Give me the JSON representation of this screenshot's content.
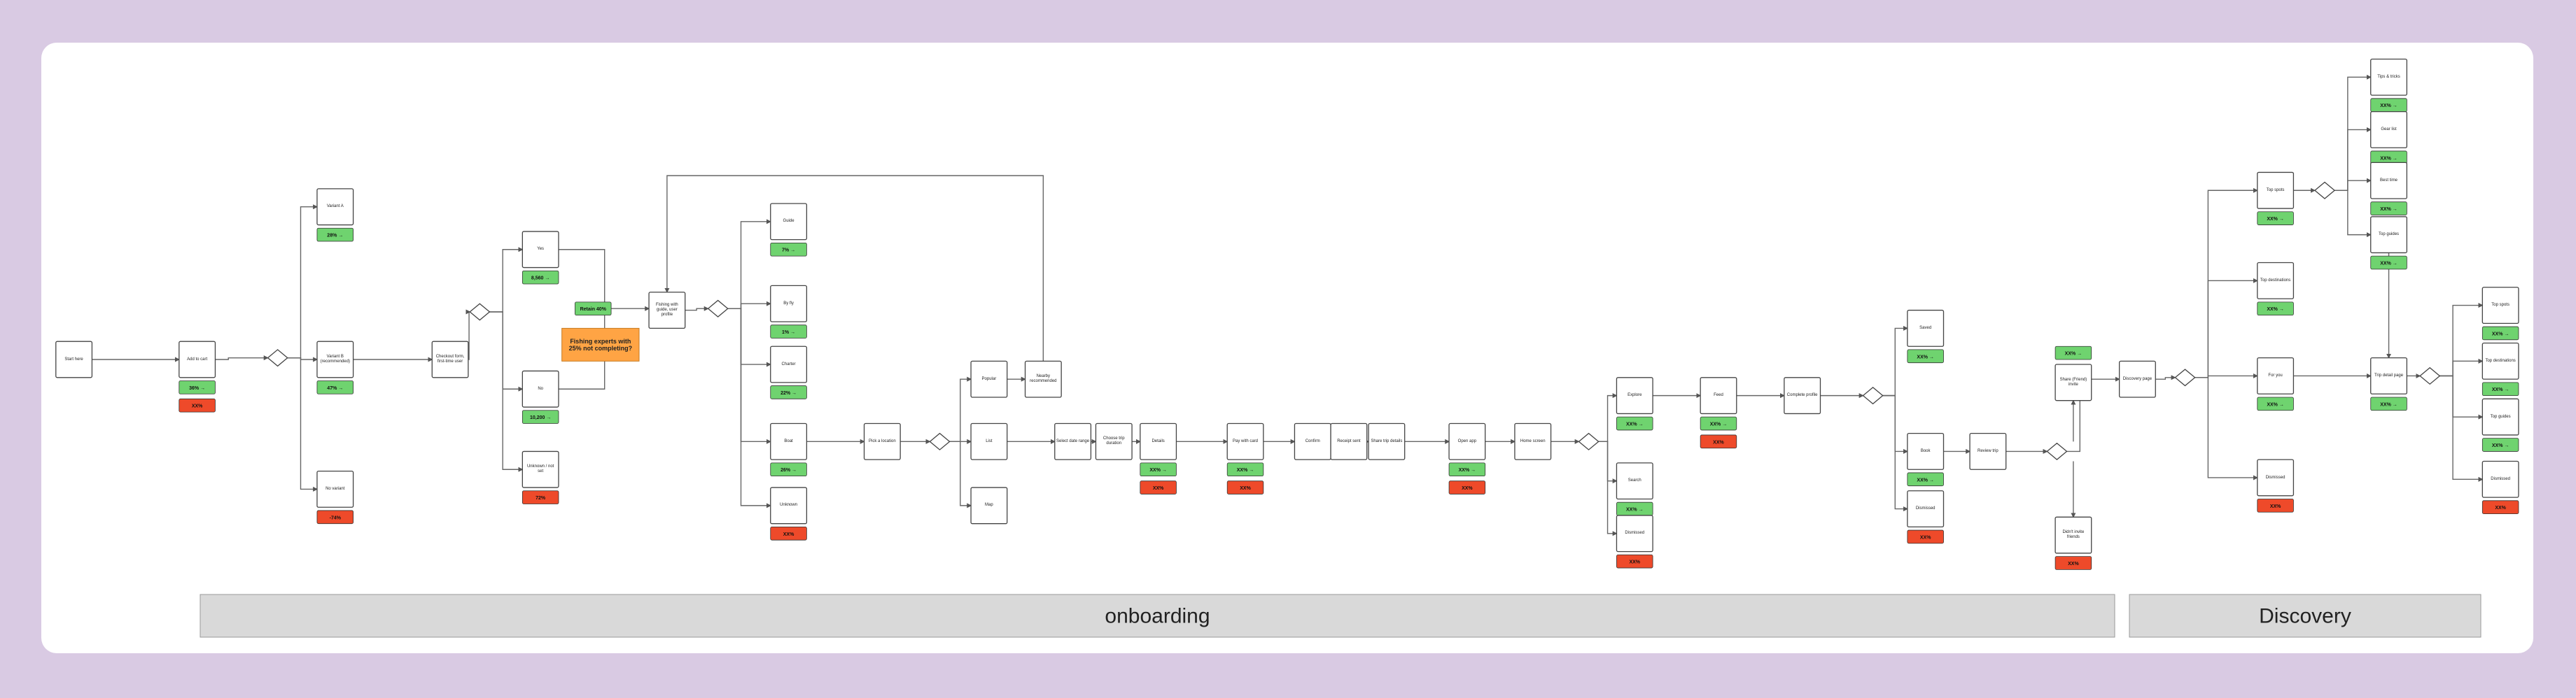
{
  "nodes": [
    {
      "label": "Start here",
      "badges": []
    },
    {
      "label": "Add to cart",
      "badges": [
        {
          "text": "36% →",
          "kind": "green"
        },
        {
          "text": "XX%",
          "kind": "red"
        }
      ]
    },
    {
      "label": "Variant A",
      "badges": [
        {
          "text": "28% →",
          "kind": "green"
        }
      ]
    },
    {
      "label": "Variant B (recommended)",
      "badges": [
        {
          "text": "47% →",
          "kind": "green"
        }
      ]
    },
    {
      "label": "No variant",
      "badges": [
        {
          "text": "-74%",
          "kind": "red"
        }
      ]
    },
    {
      "label": "Checkout form, first-time user",
      "badges": []
    },
    {
      "label": "Yes",
      "badges": [
        {
          "text": "8,560 →",
          "kind": "green"
        }
      ]
    },
    {
      "label": "No",
      "badges": [
        {
          "text": "10,200 →",
          "kind": "green"
        }
      ]
    },
    {
      "label": "Unknown / not set",
      "badges": [
        {
          "text": "72%",
          "kind": "red"
        }
      ]
    },
    {
      "label": "Fishing with guide, user profile",
      "badges": []
    },
    {
      "label": "Guide",
      "badges": [
        {
          "text": "7% →",
          "kind": "green"
        }
      ]
    },
    {
      "label": "By fly",
      "badges": [
        {
          "text": "1% →",
          "kind": "green"
        }
      ]
    },
    {
      "label": "Charter",
      "badges": [
        {
          "text": "22% →",
          "kind": "green"
        }
      ]
    },
    {
      "label": "Boat",
      "badges": [
        {
          "text": "26% →",
          "kind": "green"
        }
      ]
    },
    {
      "label": "Unknown",
      "badges": [
        {
          "text": "XX%",
          "kind": "red"
        }
      ]
    },
    {
      "label": "Pick a location",
      "badges": []
    },
    {
      "label": "Popular",
      "badges": []
    },
    {
      "label": "Nearby recommended",
      "badges": []
    },
    {
      "label": "List",
      "badges": []
    },
    {
      "label": "Map",
      "badges": []
    },
    {
      "label": "Select date range",
      "badges": []
    },
    {
      "label": "Choose trip duration",
      "badges": []
    },
    {
      "label": "Details",
      "badges": [
        {
          "text": "XX% →",
          "kind": "green"
        },
        {
          "text": "XX%",
          "kind": "red"
        }
      ]
    },
    {
      "label": "Pay with card",
      "badges": [
        {
          "text": "XX% →",
          "kind": "green"
        },
        {
          "text": "XX%",
          "kind": "red"
        }
      ]
    },
    {
      "label": "Confirm",
      "badges": []
    },
    {
      "label": "Receipt sent",
      "badges": []
    },
    {
      "label": "Share trip details",
      "badges": []
    },
    {
      "label": "Open app",
      "badges": [
        {
          "text": "XX% →",
          "kind": "green"
        },
        {
          "text": "XX%",
          "kind": "red"
        }
      ]
    },
    {
      "label": "Home screen",
      "badges": []
    },
    {
      "label": "Explore",
      "badges": [
        {
          "text": "XX% →",
          "kind": "green"
        }
      ]
    },
    {
      "label": "Search",
      "badges": [
        {
          "text": "XX% →",
          "kind": "green"
        }
      ]
    },
    {
      "label": "Dismissed",
      "badges": [
        {
          "text": "XX%",
          "kind": "red"
        }
      ]
    },
    {
      "label": "Feed",
      "badges": [
        {
          "text": "XX% →",
          "kind": "green"
        },
        {
          "text": "XX%",
          "kind": "red"
        }
      ]
    },
    {
      "label": "Complete profile",
      "badges": []
    },
    {
      "label": "Saved",
      "badges": [
        {
          "text": "XX% →",
          "kind": "green"
        }
      ]
    },
    {
      "label": "Book",
      "badges": [
        {
          "text": "XX% →",
          "kind": "green"
        }
      ]
    },
    {
      "label": "Dismissed",
      "badges": [
        {
          "text": "XX%",
          "kind": "red"
        }
      ]
    },
    {
      "label": "Review trip",
      "badges": []
    },
    {
      "label": "Share (Friend) invite",
      "badges": [
        {
          "text": "XX% →",
          "kind": "green"
        }
      ]
    },
    {
      "label": "Didn't invite friends",
      "badges": [
        {
          "text": "XX%",
          "kind": "red"
        }
      ]
    },
    {
      "label": "Discovery page",
      "badges": []
    },
    {
      "label": "Top spots",
      "badges": [
        {
          "text": "XX% →",
          "kind": "green"
        }
      ]
    },
    {
      "label": "Tips & tricks",
      "badges": [
        {
          "text": "XX% →",
          "kind": "green"
        }
      ]
    },
    {
      "label": "Gear list",
      "badges": [
        {
          "text": "XX% →",
          "kind": "green"
        }
      ]
    },
    {
      "label": "Best time",
      "badges": [
        {
          "text": "XX% →",
          "kind": "green"
        }
      ]
    },
    {
      "label": "Top guides",
      "badges": [
        {
          "text": "XX% →",
          "kind": "green"
        }
      ]
    },
    {
      "label": "Top destinations",
      "badges": [
        {
          "text": "XX% →",
          "kind": "green"
        }
      ]
    },
    {
      "label": "For you",
      "badges": [
        {
          "text": "XX% →",
          "kind": "green"
        }
      ]
    },
    {
      "label": "Dismissed",
      "badges": [
        {
          "text": "XX%",
          "kind": "red"
        }
      ]
    },
    {
      "label": "Trip detail page",
      "badges": [
        {
          "text": "XX% →",
          "kind": "green"
        }
      ]
    },
    {
      "label": "Top spots",
      "badges": [
        {
          "text": "XX% →",
          "kind": "green"
        }
      ]
    },
    {
      "label": "Top destinations",
      "badges": [
        {
          "text": "XX% →",
          "kind": "green"
        }
      ]
    },
    {
      "label": "Top guides",
      "badges": [
        {
          "text": "XX% →",
          "kind": "green"
        }
      ]
    },
    {
      "label": "Dismissed",
      "badges": [
        {
          "text": "XX%",
          "kind": "red"
        }
      ]
    }
  ],
  "notes": [
    {
      "text": "Retain 40%",
      "kind": "green"
    },
    {
      "text": "Fishing experts with 25% not completing?",
      "kind": "orange"
    }
  ],
  "sections": [
    "onboarding",
    "Discovery"
  ]
}
